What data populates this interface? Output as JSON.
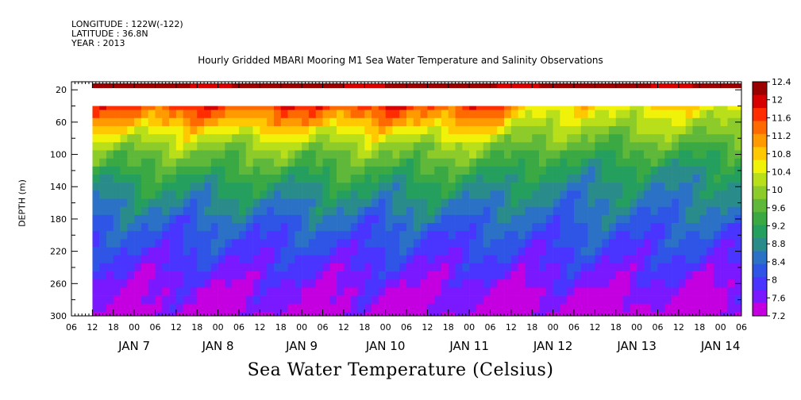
{
  "header": {
    "longitude": "LONGITUDE : 122W(-122)",
    "latitude": "LATITUDE : 36.8N",
    "year": "YEAR : 2013"
  },
  "colors": {
    "palette": [
      "#c400e0",
      "#7a18ff",
      "#4a34ff",
      "#2f55e6",
      "#2b72c6",
      "#2a8c8a",
      "#249f5e",
      "#3aa944",
      "#60b83a",
      "#8ccb2a",
      "#b8df1a",
      "#f0f20a",
      "#ffc800",
      "#ff9a00",
      "#ff6a00",
      "#ff2d00",
      "#d60000",
      "#9b0000"
    ]
  },
  "chart_data": {
    "type": "heatmap",
    "title": "Hourly Gridded MBARI Mooring M1 Sea Water Temperature and Salinity Observations",
    "xlabel": "",
    "ylabel": "DEPTH (m)",
    "bottom_title": "Sea Water Temperature (Celsius)",
    "x_tick_hours": [
      "06",
      "12",
      "18",
      "00",
      "06",
      "12",
      "18",
      "00",
      "06",
      "12",
      "18",
      "00",
      "06",
      "12",
      "18",
      "00",
      "06",
      "12",
      "18",
      "00",
      "06",
      "12",
      "18",
      "00",
      "06",
      "12",
      "18",
      "00",
      "06",
      "12",
      "18",
      "00",
      "06"
    ],
    "x_day_labels": [
      "JAN  7",
      "JAN  8",
      "JAN  9",
      "JAN 10",
      "JAN 11",
      "JAN 12",
      "JAN 13",
      "JAN 14"
    ],
    "xlim": [
      "2013-01-06T06:00",
      "2013-01-14T06:00"
    ],
    "y_ticks": [
      20,
      60,
      100,
      140,
      180,
      220,
      260,
      300
    ],
    "ylim": [
      300,
      10
    ],
    "data_start": "2013-01-06T12:00",
    "depths": [
      10,
      40,
      50,
      60,
      70,
      80,
      90,
      100,
      110,
      120,
      130,
      140,
      150,
      160,
      170,
      180,
      190,
      200,
      210,
      220,
      230,
      240,
      250,
      260,
      270,
      280,
      290,
      300
    ],
    "colorbar": {
      "labels": [
        "12.4",
        "12",
        "11.6",
        "11.2",
        "10.8",
        "10.4",
        "10",
        "9.6",
        "9.2",
        "8.8",
        "8.4",
        "8",
        "7.6",
        "7.2"
      ],
      "min": 7.2,
      "max": 12.4
    },
    "profile_surface_10m": 12.2,
    "profile_early": [
      11.6,
      11.3,
      11.0,
      10.6,
      10.3,
      10.0,
      9.8,
      9.6,
      9.4,
      9.2,
      9.0,
      8.9,
      8.7,
      8.6,
      8.4,
      8.3,
      8.2,
      8.1,
      8.0,
      7.9,
      7.8,
      7.7,
      7.6,
      7.5,
      7.5,
      7.4,
      7.3
    ],
    "profile_late": [
      10.6,
      10.4,
      10.2,
      10.0,
      9.8,
      9.6,
      9.4,
      9.2,
      9.0,
      8.9,
      8.8,
      8.7,
      8.6,
      8.5,
      8.4,
      8.3,
      8.2,
      8.1,
      8.0,
      7.9,
      7.8,
      7.7,
      7.6,
      7.5,
      7.4,
      7.3,
      7.2
    ],
    "transition_time": "2013-01-11T12:00",
    "missing_depth_range": [
      20,
      30
    ]
  }
}
